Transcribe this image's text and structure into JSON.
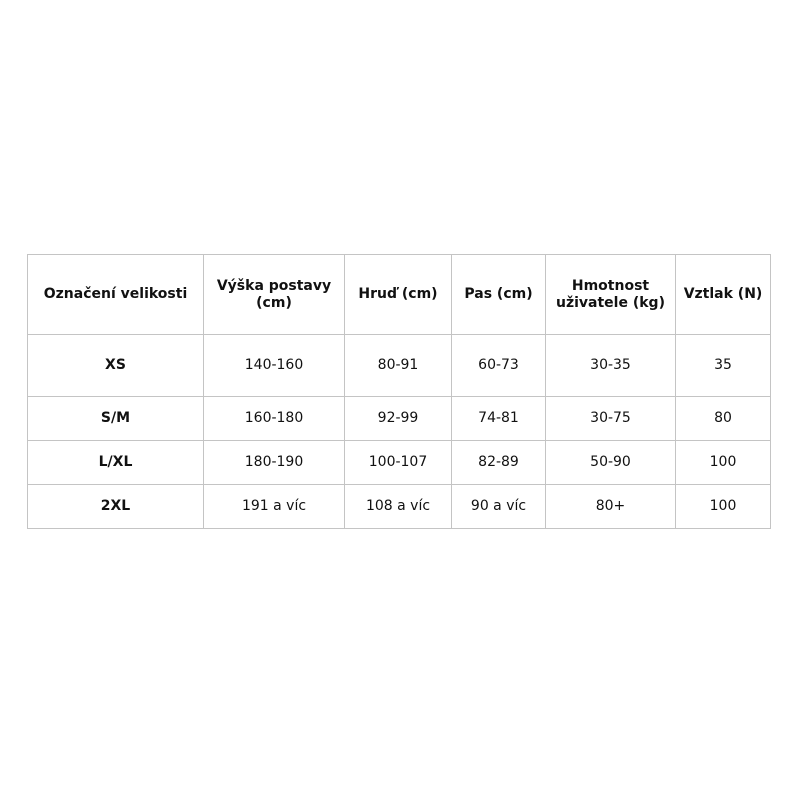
{
  "table": {
    "headers": [
      "Označení velikosti",
      "Výška postavy (cm)",
      "Hruď (cm)",
      "Pas (cm)",
      "Hmotnost uživatele (kg)",
      "Vztlak (N)"
    ],
    "rows": [
      [
        "XS",
        "140-160",
        "80-91",
        "60-73",
        "30-35",
        "35"
      ],
      [
        "S/M",
        "160-180",
        "92-99",
        "74-81",
        "30-75",
        "80"
      ],
      [
        "L/XL",
        "180-190",
        "100-107",
        "82-89",
        "50-90",
        "100"
      ],
      [
        "2XL",
        "191 a víc",
        "108 a víc",
        "90 a víc",
        "80+",
        "100"
      ]
    ]
  }
}
